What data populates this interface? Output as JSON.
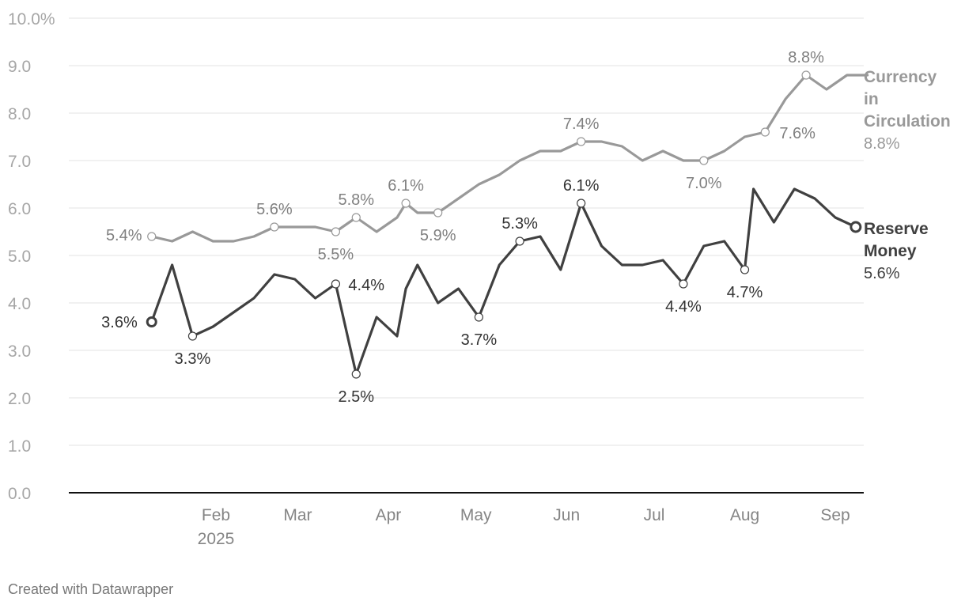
{
  "chart_data": {
    "type": "line",
    "ylim": [
      0,
      10
    ],
    "y_ticks": [
      {
        "value": 0,
        "label": "0.0"
      },
      {
        "value": 1,
        "label": "1.0"
      },
      {
        "value": 2,
        "label": "2.0"
      },
      {
        "value": 3,
        "label": "3.0"
      },
      {
        "value": 4,
        "label": "4.0"
      },
      {
        "value": 5,
        "label": "5.0"
      },
      {
        "value": 6,
        "label": "6.0"
      },
      {
        "value": 7,
        "label": "7.0"
      },
      {
        "value": 8,
        "label": "8.0"
      },
      {
        "value": 9,
        "label": "9.0"
      },
      {
        "value": 10,
        "label": "10.0%"
      }
    ],
    "x_ticks": [
      {
        "date": "2025-02-01",
        "label": "Feb",
        "sublabel": "2025"
      },
      {
        "date": "2025-03-01",
        "label": "Mar"
      },
      {
        "date": "2025-04-01",
        "label": "Apr"
      },
      {
        "date": "2025-05-01",
        "label": "May"
      },
      {
        "date": "2025-06-01",
        "label": "Jun"
      },
      {
        "date": "2025-07-01",
        "label": "Jul"
      },
      {
        "date": "2025-08-01",
        "label": "Aug"
      },
      {
        "date": "2025-09-01",
        "label": "Sep"
      }
    ],
    "grid": true,
    "series": [
      {
        "name": "Currency in Circulation",
        "value_label": "8.8%",
        "color": "#999999",
        "points": [
          {
            "x": "2025-01-10",
            "y": 5.4,
            "label": "5.4%"
          },
          {
            "x": "2025-01-17",
            "y": 5.3
          },
          {
            "x": "2025-01-24",
            "y": 5.5
          },
          {
            "x": "2025-01-31",
            "y": 5.3
          },
          {
            "x": "2025-02-07",
            "y": 5.3
          },
          {
            "x": "2025-02-14",
            "y": 5.4
          },
          {
            "x": "2025-02-21",
            "y": 5.6,
            "label": "5.6%"
          },
          {
            "x": "2025-02-28",
            "y": 5.6
          },
          {
            "x": "2025-03-07",
            "y": 5.6
          },
          {
            "x": "2025-03-14",
            "y": 5.5,
            "label": "5.5%"
          },
          {
            "x": "2025-03-21",
            "y": 5.8,
            "label": "5.8%"
          },
          {
            "x": "2025-03-28",
            "y": 5.5
          },
          {
            "x": "2025-04-04",
            "y": 5.8
          },
          {
            "x": "2025-04-07",
            "y": 6.1,
            "label": "6.1%"
          },
          {
            "x": "2025-04-11",
            "y": 5.9
          },
          {
            "x": "2025-04-18",
            "y": 5.9,
            "label": "5.9%"
          },
          {
            "x": "2025-04-25",
            "y": 6.2
          },
          {
            "x": "2025-05-02",
            "y": 6.5
          },
          {
            "x": "2025-05-09",
            "y": 6.7
          },
          {
            "x": "2025-05-16",
            "y": 7.0
          },
          {
            "x": "2025-05-23",
            "y": 7.2
          },
          {
            "x": "2025-05-30",
            "y": 7.2
          },
          {
            "x": "2025-06-06",
            "y": 7.4,
            "label": "7.4%"
          },
          {
            "x": "2025-06-13",
            "y": 7.4
          },
          {
            "x": "2025-06-20",
            "y": 7.3
          },
          {
            "x": "2025-06-27",
            "y": 7.0
          },
          {
            "x": "2025-07-04",
            "y": 7.2
          },
          {
            "x": "2025-07-11",
            "y": 7.0
          },
          {
            "x": "2025-07-18",
            "y": 7.0,
            "label": "7.0%"
          },
          {
            "x": "2025-07-25",
            "y": 7.2
          },
          {
            "x": "2025-08-01",
            "y": 7.5
          },
          {
            "x": "2025-08-08",
            "y": 7.6,
            "label": "7.6%"
          },
          {
            "x": "2025-08-15",
            "y": 8.3
          },
          {
            "x": "2025-08-22",
            "y": 8.8,
            "label": "8.8%"
          },
          {
            "x": "2025-08-29",
            "y": 8.5
          },
          {
            "x": "2025-09-05",
            "y": 8.8
          },
          {
            "x": "2025-09-12",
            "y": 8.8
          }
        ]
      },
      {
        "name": "Reserve Money",
        "value_label": "5.6%",
        "color": "#404040",
        "points": [
          {
            "x": "2025-01-10",
            "y": 3.6,
            "label": "3.6%"
          },
          {
            "x": "2025-01-17",
            "y": 4.8
          },
          {
            "x": "2025-01-24",
            "y": 3.3,
            "label": "3.3%"
          },
          {
            "x": "2025-01-31",
            "y": 3.5
          },
          {
            "x": "2025-02-07",
            "y": 3.8
          },
          {
            "x": "2025-02-14",
            "y": 4.1
          },
          {
            "x": "2025-02-21",
            "y": 4.6
          },
          {
            "x": "2025-02-28",
            "y": 4.5
          },
          {
            "x": "2025-03-07",
            "y": 4.1
          },
          {
            "x": "2025-03-14",
            "y": 4.4,
            "label": "4.4%"
          },
          {
            "x": "2025-03-21",
            "y": 2.5,
            "label": "2.5%"
          },
          {
            "x": "2025-03-28",
            "y": 3.7
          },
          {
            "x": "2025-04-04",
            "y": 3.3
          },
          {
            "x": "2025-04-07",
            "y": 4.3
          },
          {
            "x": "2025-04-11",
            "y": 4.8
          },
          {
            "x": "2025-04-18",
            "y": 4.0
          },
          {
            "x": "2025-04-25",
            "y": 4.3
          },
          {
            "x": "2025-05-02",
            "y": 3.7,
            "label": "3.7%"
          },
          {
            "x": "2025-05-09",
            "y": 4.8
          },
          {
            "x": "2025-05-16",
            "y": 5.3,
            "label": "5.3%"
          },
          {
            "x": "2025-05-23",
            "y": 5.4
          },
          {
            "x": "2025-05-30",
            "y": 4.7
          },
          {
            "x": "2025-06-06",
            "y": 6.1,
            "label": "6.1%"
          },
          {
            "x": "2025-06-13",
            "y": 5.2
          },
          {
            "x": "2025-06-20",
            "y": 4.8
          },
          {
            "x": "2025-06-27",
            "y": 4.8
          },
          {
            "x": "2025-07-04",
            "y": 4.9
          },
          {
            "x": "2025-07-11",
            "y": 4.4,
            "label": "4.4%"
          },
          {
            "x": "2025-07-18",
            "y": 5.2
          },
          {
            "x": "2025-07-25",
            "y": 5.3
          },
          {
            "x": "2025-08-01",
            "y": 4.7,
            "label": "4.7%"
          },
          {
            "x": "2025-08-04",
            "y": 6.4
          },
          {
            "x": "2025-08-11",
            "y": 5.7
          },
          {
            "x": "2025-08-18",
            "y": 6.4
          },
          {
            "x": "2025-08-25",
            "y": 6.2
          },
          {
            "x": "2025-09-01",
            "y": 5.8
          },
          {
            "x": "2025-09-08",
            "y": 5.6
          }
        ]
      }
    ]
  },
  "credit": "Created with Datawrapper"
}
